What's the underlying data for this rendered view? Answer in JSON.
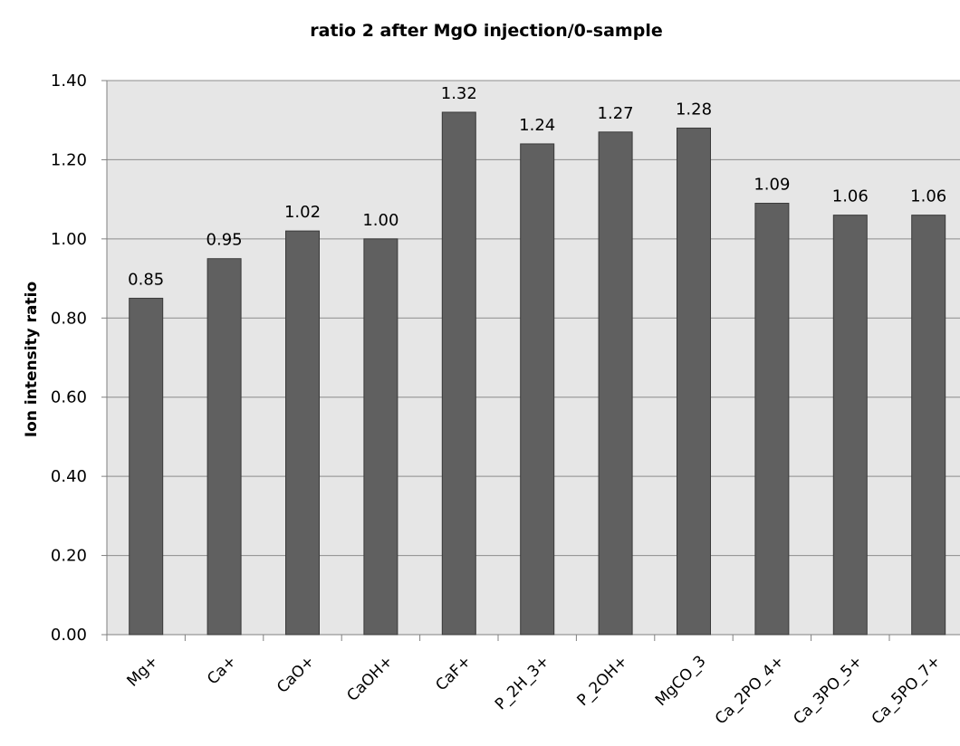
{
  "chart_data": {
    "type": "bar",
    "title": "ratio 2 after MgO injection/0-sample",
    "xlabel": "",
    "ylabel": "Ion intensity ratio",
    "categories": [
      "Mg+",
      "Ca+",
      "CaO+",
      "CaOH+",
      "CaF+",
      "P_2H_3+",
      "P_2OH+",
      "MgCO_3",
      "Ca_2PO_4+",
      "Ca_3PO_5+",
      "Ca_5PO_7+"
    ],
    "values": [
      0.85,
      0.95,
      1.02,
      1.0,
      1.32,
      1.24,
      1.27,
      1.28,
      1.09,
      1.06,
      1.06
    ],
    "data_labels": [
      "0.85",
      "0.95",
      "1.02",
      "1.00",
      "1.32",
      "1.24",
      "1.27",
      "1.28",
      "1.09",
      "1.06",
      "1.06"
    ],
    "ylim": [
      0,
      1.4
    ],
    "yticks": [
      "0.00",
      "0.20",
      "0.40",
      "0.60",
      "0.80",
      "1.00",
      "1.20",
      "1.40"
    ],
    "grid": true,
    "legend": "none",
    "colors": {
      "bar": "#606060",
      "bar_edge": "#3a3a3a",
      "plot_background": "#e6e6e6",
      "gridline": "#8c8c8c",
      "axis": "#808080"
    }
  }
}
